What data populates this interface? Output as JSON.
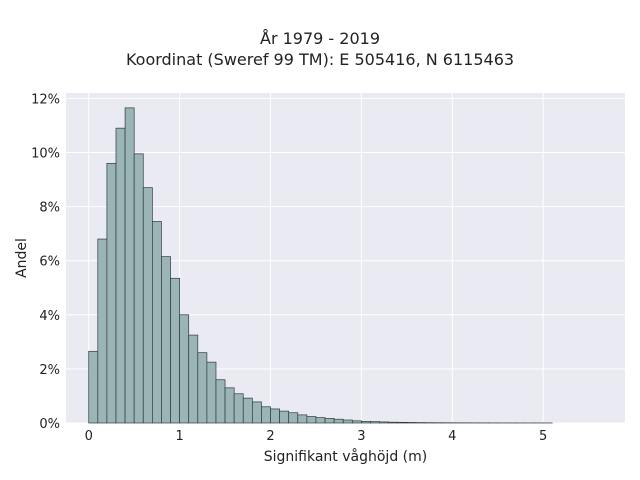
{
  "chart_data": {
    "type": "bar",
    "title_lines": [
      "År 1979 - 2019",
      "Koordinat (Sweref 99 TM): E 505416, N 6115463"
    ],
    "xlabel": "Signifikant våghöjd (m)",
    "ylabel": "Andel",
    "xlim": [
      -0.25,
      5.9
    ],
    "ylim": [
      0,
      12.2
    ],
    "x_ticks": [
      0,
      1,
      2,
      3,
      4,
      5
    ],
    "x_tick_labels": [
      "0",
      "1",
      "2",
      "3",
      "4",
      "5"
    ],
    "y_ticks": [
      0,
      2,
      4,
      6,
      8,
      10,
      12
    ],
    "y_tick_labels": [
      "0%",
      "2%",
      "4%",
      "6%",
      "8%",
      "10%",
      "12%"
    ],
    "bin_width": 0.1,
    "bin_starts": [
      0.0,
      0.1,
      0.2,
      0.3,
      0.4,
      0.5,
      0.6,
      0.7,
      0.8,
      0.9,
      1.0,
      1.1,
      1.2,
      1.3,
      1.4,
      1.5,
      1.6,
      1.7,
      1.8,
      1.9,
      2.0,
      2.1,
      2.2,
      2.3,
      2.4,
      2.5,
      2.6,
      2.7,
      2.8,
      2.9,
      3.0,
      3.1,
      3.2,
      3.3,
      3.4,
      3.5,
      3.6,
      3.7,
      3.8,
      3.9,
      4.0,
      4.1,
      4.2,
      4.3,
      4.4,
      4.5,
      4.6,
      4.7,
      4.8,
      4.9,
      5.0
    ],
    "values": [
      2.65,
      6.8,
      9.6,
      10.9,
      11.65,
      9.95,
      8.7,
      7.45,
      6.15,
      5.35,
      4.0,
      3.25,
      2.6,
      2.25,
      1.6,
      1.3,
      1.08,
      0.92,
      0.78,
      0.6,
      0.52,
      0.44,
      0.38,
      0.3,
      0.24,
      0.2,
      0.17,
      0.14,
      0.11,
      0.08,
      0.06,
      0.05,
      0.04,
      0.03,
      0.025,
      0.02,
      0.015,
      0.012,
      0.01,
      0.008,
      0.007,
      0.006,
      0.005,
      0.004,
      0.004,
      0.003,
      0.003,
      0.002,
      0.002,
      0.002,
      0.002
    ],
    "grid": true,
    "colors": {
      "background": "#eaeaf2",
      "grid": "#ffffff",
      "bar_fill": "#9bb5b6",
      "bar_edge": "#2f3b3b"
    }
  }
}
